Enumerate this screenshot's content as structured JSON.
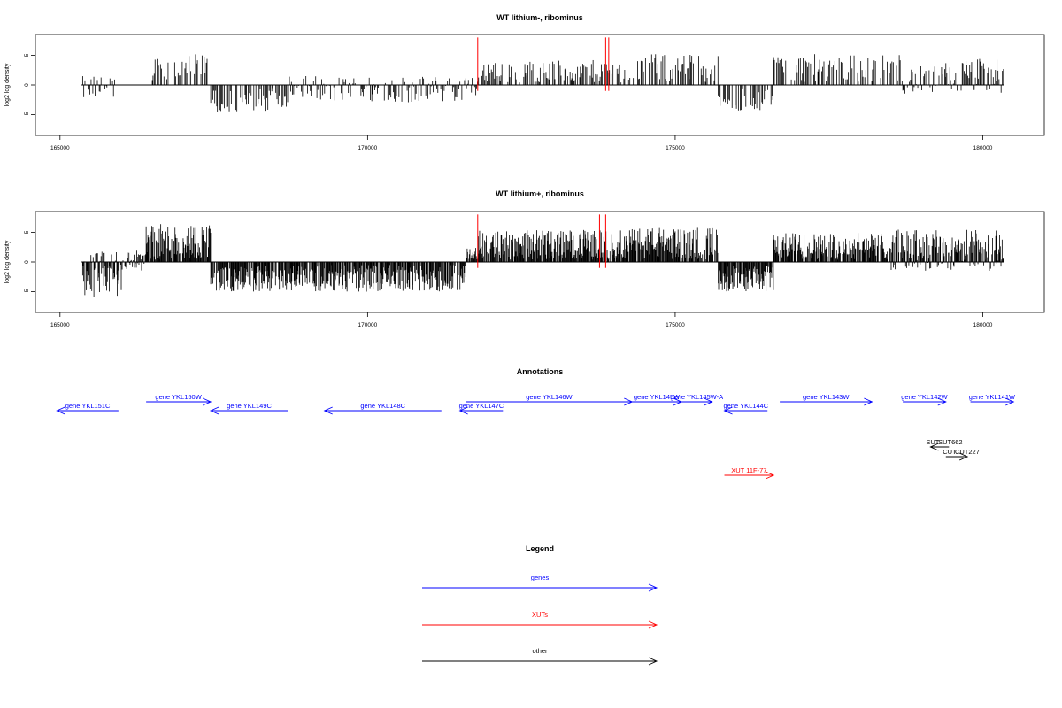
{
  "colors": {
    "gene": "#0000ff",
    "xut": "#ff0000",
    "other": "#000000",
    "marker": "#ff0000",
    "bar": "#000000"
  },
  "chart_data": [
    {
      "type": "bar",
      "title": "WT lithium-, ribominus",
      "ylabel": "log2 log density",
      "xlim": [
        164600,
        181000
      ],
      "ylim": [
        -8.5,
        8.5
      ],
      "xticks": [
        165000,
        170000,
        175000,
        180000
      ],
      "yticks": [
        -5,
        0,
        5
      ],
      "data_range": [
        165350,
        180350
      ],
      "red_markers": [
        171790,
        173870,
        173920
      ],
      "segments": [
        [
          165350,
          165900,
          -2.8,
          1.5
        ],
        [
          166500,
          167450,
          -0.5,
          4.8
        ],
        [
          167450,
          168700,
          -4.0,
          0.3
        ],
        [
          168700,
          171790,
          -3.0,
          1.5
        ],
        [
          171790,
          174300,
          -1.0,
          3.8
        ],
        [
          174300,
          175700,
          -0.5,
          4.8
        ],
        [
          175700,
          176600,
          -4.2,
          0.5
        ],
        [
          176600,
          178700,
          -0.5,
          4.8
        ],
        [
          178700,
          179400,
          -1.5,
          3.2
        ],
        [
          179400,
          180350,
          -1.5,
          4.5
        ]
      ]
    },
    {
      "type": "bar",
      "title": "WT lithium+, ribominus",
      "ylabel": "log2 log density",
      "xlim": [
        164600,
        181000
      ],
      "ylim": [
        -8.5,
        8.5
      ],
      "xticks": [
        165000,
        170000,
        175000,
        180000
      ],
      "yticks": [
        -5,
        0,
        5
      ],
      "data_range": [
        165350,
        180350
      ],
      "red_markers": [
        171790,
        173770,
        173870
      ],
      "segments": [
        [
          165350,
          166000,
          -6.0,
          1.8
        ],
        [
          166000,
          166400,
          -1.5,
          2.0
        ],
        [
          166400,
          167450,
          -0.5,
          6.0
        ],
        [
          167450,
          171600,
          -4.5,
          0.5
        ],
        [
          171600,
          171790,
          -0.5,
          2.0
        ],
        [
          171790,
          174300,
          -0.5,
          5.0
        ],
        [
          174300,
          175700,
          -0.5,
          5.5
        ],
        [
          175700,
          176600,
          -4.5,
          0.5
        ],
        [
          176600,
          178500,
          -0.5,
          4.5
        ],
        [
          178500,
          180350,
          -1.5,
          5.5
        ]
      ]
    }
  ],
  "annotations": {
    "title": "Annotations",
    "genes": [
      {
        "label": "gene YKL151C",
        "start": 165950,
        "end": 164950,
        "row": 1
      },
      {
        "label": "gene YKL150W",
        "start": 166400,
        "end": 167450,
        "row": 0
      },
      {
        "label": "gene YKL149C",
        "start": 168700,
        "end": 167450,
        "row": 1
      },
      {
        "label": "gene YKL148C",
        "start": 171200,
        "end": 169300,
        "row": 1
      },
      {
        "label": "gene YKL147C",
        "start": 172200,
        "end": 171500,
        "row": 1
      },
      {
        "label": "gene YKL146W",
        "start": 171600,
        "end": 174300,
        "row": 0
      },
      {
        "label": "gene YKL145W",
        "start": 174300,
        "end": 175100,
        "row": 0
      },
      {
        "label": "gene YKL145W-A",
        "start": 175100,
        "end": 175600,
        "row": 0
      },
      {
        "label": "gene YKL144C",
        "start": 176500,
        "end": 175800,
        "row": 1
      },
      {
        "label": "gene YKL143W",
        "start": 176700,
        "end": 178200,
        "row": 0
      },
      {
        "label": "gene YKL142W",
        "start": 178700,
        "end": 179400,
        "row": 0
      },
      {
        "label": "gene YKL141W",
        "start": 179800,
        "end": 180500,
        "row": 0
      }
    ],
    "xuts": [
      {
        "label": "XUT 11F-77",
        "start": 175800,
        "end": 176600
      }
    ],
    "others": [
      {
        "label": "SUT",
        "label2": "SUT662",
        "start": 179450,
        "end": 179150,
        "row": 0
      },
      {
        "label": "CUT",
        "label2": "CUT227",
        "start": 179400,
        "end": 179750,
        "row": 1
      }
    ]
  },
  "legend": {
    "title": "Legend",
    "items": [
      {
        "label": "genes",
        "key": "gene"
      },
      {
        "label": "XUTs",
        "key": "xut"
      },
      {
        "label": "other",
        "key": "other"
      }
    ]
  }
}
